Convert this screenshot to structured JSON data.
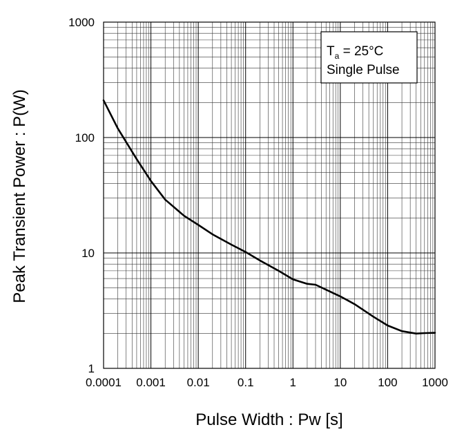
{
  "chart_data": {
    "type": "line",
    "title": "",
    "xlabel": "Pulse Width : Pw [s]",
    "ylabel": "Peak Transient Power : P(W)",
    "xscale": "log",
    "yscale": "log",
    "xlim": [
      0.0001,
      1000
    ],
    "ylim": [
      1,
      1000
    ],
    "grid": true,
    "x_ticks": [
      "0.0001",
      "0.001",
      "0.01",
      "0.1",
      "1",
      "10",
      "100",
      "1000"
    ],
    "y_ticks": [
      "1",
      "10",
      "100",
      "1000"
    ],
    "annotation": {
      "symbol": "T",
      "subscript": "a",
      "rest": " = 25°C",
      "line2": "Single Pulse",
      "placement": "top-right"
    },
    "series": [
      {
        "color": "#000000",
        "x": [
          0.0001,
          0.0002,
          0.0005,
          0.001,
          0.002,
          0.005,
          0.01,
          0.02,
          0.05,
          0.1,
          0.2,
          0.5,
          1,
          2,
          3,
          5,
          10,
          20,
          50,
          100,
          200,
          400,
          600,
          1000
        ],
        "y": [
          210,
          120,
          65,
          42,
          29,
          21,
          17.5,
          14.5,
          11.8,
          10.2,
          8.6,
          7,
          5.9,
          5.4,
          5.3,
          4.8,
          4.2,
          3.6,
          2.8,
          2.35,
          2.1,
          2.0,
          2.02,
          2.03
        ]
      }
    ]
  }
}
